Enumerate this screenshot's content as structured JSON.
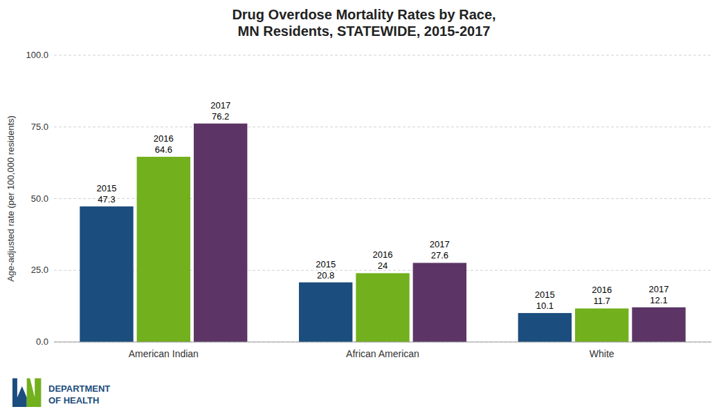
{
  "chart_data": {
    "type": "bar",
    "title": "Drug Overdose Mortality Rates by Race,\nMN Residents, STATEWIDE, 2015-2017",
    "y_label": "Age-adjusted rate (per 100,000 residents)",
    "categories": [
      "American Indian",
      "African American",
      "White"
    ],
    "series": [
      {
        "name": "2015",
        "color": "#1b4d7e",
        "values": [
          47.3,
          20.8,
          10.1
        ]
      },
      {
        "name": "2016",
        "color": "#72b01d",
        "values": [
          64.6,
          24.0,
          11.7
        ]
      },
      {
        "name": "2017",
        "color": "#5c3566",
        "values": [
          76.2,
          27.6,
          12.1
        ]
      }
    ],
    "ylim": [
      0,
      100
    ],
    "yticks": [
      {
        "value": 0,
        "label": "0.0"
      },
      {
        "value": 25,
        "label": "25.0"
      },
      {
        "value": 50,
        "label": "50.0"
      },
      {
        "value": 75,
        "label": "75.0"
      },
      {
        "value": 100,
        "label": "100.0"
      }
    ],
    "grid": true,
    "data_labels": true,
    "annotation": "DEPARTMENT\nOF HEALTH"
  }
}
